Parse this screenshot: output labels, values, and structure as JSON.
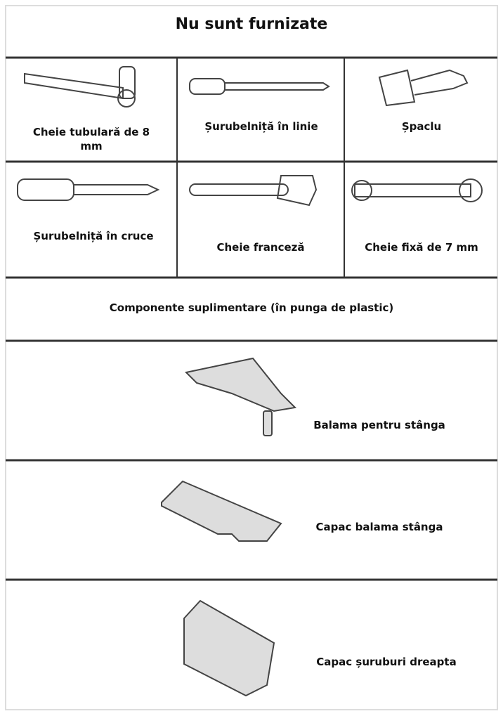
{
  "header": {
    "title": "Nu sunt furnizate"
  },
  "tools": [
    {
      "label": "Cheie tubulară de 8 mm"
    },
    {
      "label": "Șurubelniță în linie"
    },
    {
      "label": "Șpaclu"
    },
    {
      "label": "Șurubelniță în cruce"
    },
    {
      "label": "Cheie franceză"
    },
    {
      "label": "Cheie fixă de 7 mm"
    }
  ],
  "section": {
    "title": "Componente suplimentare (în punga de plastic)"
  },
  "parts": [
    {
      "label": "Balama pentru stânga"
    },
    {
      "label": "Capac balama stânga"
    },
    {
      "label": "Capac șuruburi dreapta"
    }
  ]
}
